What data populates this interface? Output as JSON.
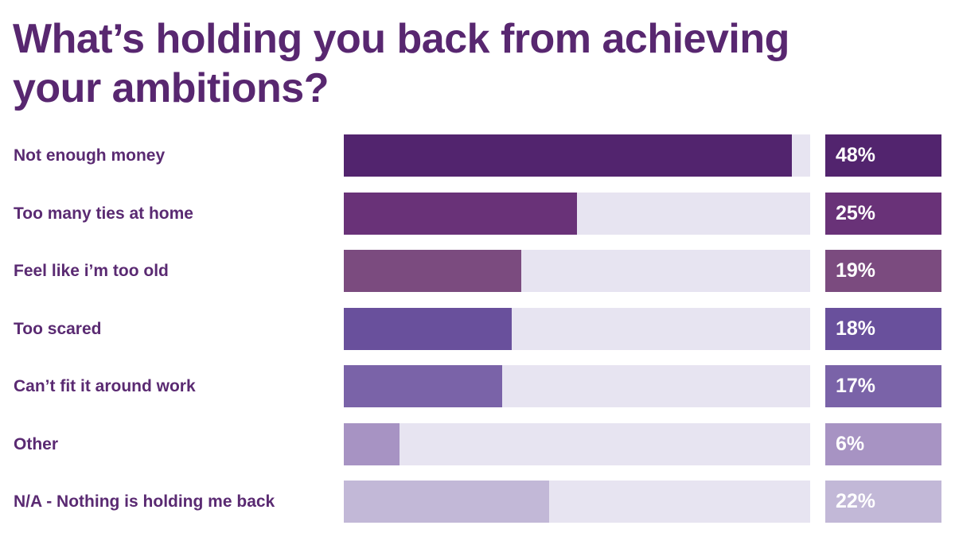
{
  "title": "What’s holding you back from achieving your ambitions?",
  "colors": {
    "title": "#582770",
    "label": "#5a2a72",
    "track": "#e7e4f1",
    "value_text": "#ffffff"
  },
  "chart_data": {
    "type": "bar",
    "orientation": "horizontal",
    "title": "What’s holding you back from achieving your ambitions?",
    "xlabel": "",
    "ylabel": "",
    "unit": "%",
    "xlim": [
      0,
      50
    ],
    "grid": false,
    "legend": "none",
    "categories": [
      "Not enough money",
      "Too many ties at home",
      "Feel like i’m too old",
      "Too scared",
      "Can’t fit it around work",
      "Other",
      "N/A - Nothing is holding me back"
    ],
    "values": [
      48,
      25,
      19,
      18,
      17,
      6,
      22
    ],
    "value_labels": [
      "48%",
      "25%",
      "19%",
      "18%",
      "17%",
      "6%",
      "22%"
    ],
    "bar_colors": [
      "#52246e",
      "#693278",
      "#7b4b7f",
      "#69509c",
      "#7a63a8",
      "#a793c3",
      "#c2b8d7"
    ]
  }
}
